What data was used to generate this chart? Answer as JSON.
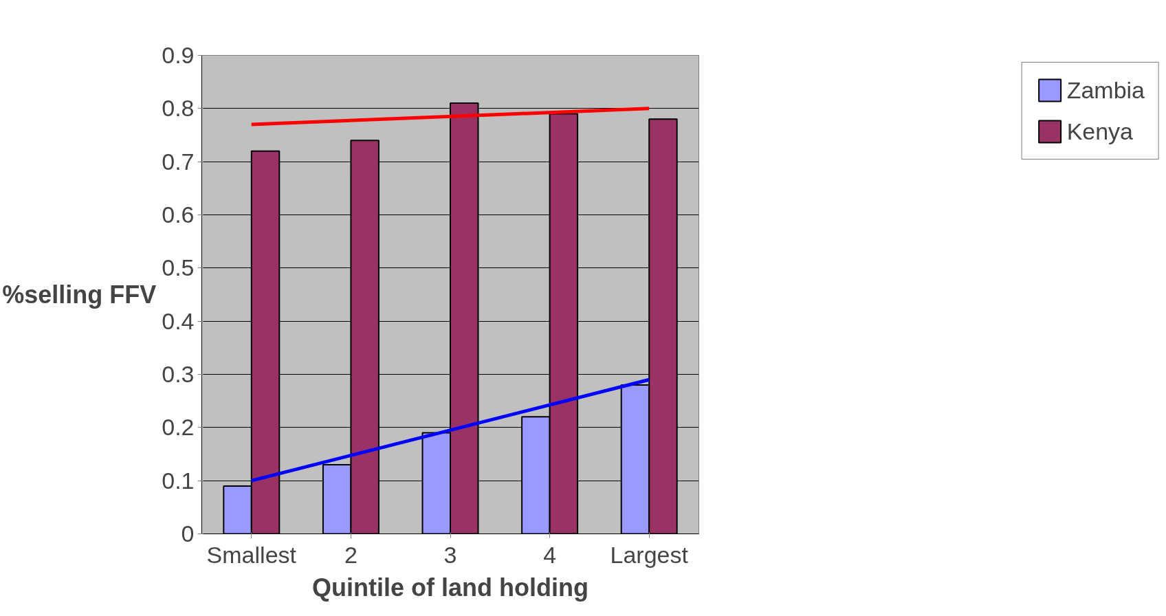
{
  "chart_data": {
    "type": "bar",
    "xlabel": "Quintile of land holding",
    "ylabel": "%selling FFV",
    "categories": [
      "Smallest",
      "2",
      "3",
      "4",
      "Largest"
    ],
    "series": [
      {
        "name": "Zambia",
        "color": "#9999ff",
        "values": [
          0.09,
          0.13,
          0.19,
          0.22,
          0.28
        ]
      },
      {
        "name": "Kenya",
        "color": "#993366",
        "values": [
          0.72,
          0.74,
          0.81,
          0.79,
          0.78
        ]
      },
      {
        "type": "line",
        "color": "#ff0000",
        "x": [
          "Smallest",
          "Largest"
        ],
        "values": [
          0.77,
          0.8
        ]
      },
      {
        "type": "line",
        "color": "#0000ff",
        "x": [
          "Smallest",
          "Largest"
        ],
        "values": [
          0.1,
          0.29
        ]
      }
    ],
    "ylim": [
      0,
      0.9
    ],
    "yticks": [
      0,
      0.1,
      0.2,
      0.3,
      0.4,
      0.5,
      0.6,
      0.7,
      0.8,
      0.9
    ],
    "grid": "y",
    "legend": "right"
  }
}
